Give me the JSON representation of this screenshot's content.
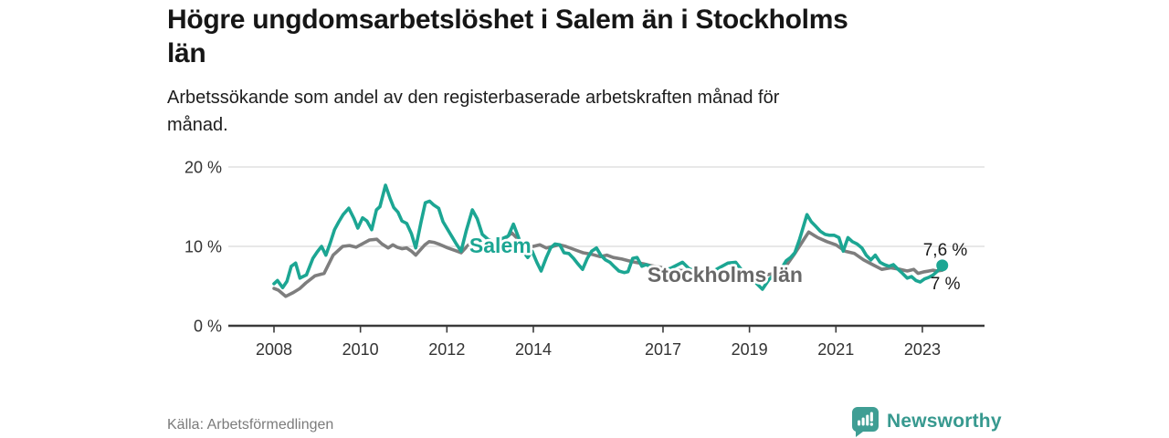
{
  "header": {
    "title": "Högre ungdomsarbetslöshet i Salem än i Stockholms\nlän",
    "subtitle": "Arbetssökande som andel av den registerbaserade arbetskraften månad för\nmånad."
  },
  "footer": {
    "source": "Källa: Arbetsförmedlingen",
    "brand": "Newsworthy",
    "brand_icon": "newsworthy-bar-chart-speech-bubble-icon",
    "brand_color": "#37998f"
  },
  "colors": {
    "salem_line": "#1ca693",
    "stockholm_line": "#7e7e7e",
    "stockholm_label": "#686868",
    "grid": "#d9d9d9",
    "axis": "#3a3a3a",
    "end_label_text": "#1a1a1a"
  },
  "chart_data": {
    "type": "line",
    "title": "Högre ungdomsarbetslöshet i Salem än i Stockholms län",
    "subtitle": "Arbetssökande som andel av den registerbaserade arbetskraften månad för månad.",
    "xlabel": "",
    "ylabel": "",
    "ylim": [
      0,
      20
    ],
    "xlim": [
      2007.6,
      2024.0
    ],
    "grid": "horizontal",
    "legend_position": "inline-labels",
    "y_axis": {
      "ticks": [
        {
          "value": 20,
          "label": "20 %"
        },
        {
          "value": 10,
          "label": "10 %"
        },
        {
          "value": 0,
          "label": "0 %"
        }
      ]
    },
    "x_axis": {
      "ticks": [
        {
          "value": 2008,
          "label": "2008"
        },
        {
          "value": 2010,
          "label": "2010"
        },
        {
          "value": 2012,
          "label": "2012"
        },
        {
          "value": 2014,
          "label": "2014"
        },
        {
          "value": 2017,
          "label": "2017"
        },
        {
          "value": 2019,
          "label": "2019"
        },
        {
          "value": 2021,
          "label": "2021"
        },
        {
          "value": 2023,
          "label": "2023"
        }
      ]
    },
    "series": [
      {
        "name": "Salem",
        "color": "#1ca693",
        "label_color": "#1ca693",
        "end_label": "7,6 %",
        "end_value": 7.6,
        "end_dot": true,
        "inline_label": {
          "text": "Salem",
          "year": 2012.52,
          "value": 9.2
        },
        "points": [
          [
            2008.0,
            5.3
          ],
          [
            2008.08,
            5.7
          ],
          [
            2008.2,
            4.8
          ],
          [
            2008.3,
            5.6
          ],
          [
            2008.4,
            7.5
          ],
          [
            2008.5,
            7.9
          ],
          [
            2008.6,
            6.0
          ],
          [
            2008.75,
            6.4
          ],
          [
            2008.9,
            8.5
          ],
          [
            2009.0,
            9.3
          ],
          [
            2009.1,
            10.0
          ],
          [
            2009.2,
            8.9
          ],
          [
            2009.3,
            10.4
          ],
          [
            2009.4,
            12.1
          ],
          [
            2009.5,
            13.1
          ],
          [
            2009.6,
            14.0
          ],
          [
            2009.73,
            14.8
          ],
          [
            2009.85,
            13.5
          ],
          [
            2009.94,
            12.3
          ],
          [
            2010.05,
            13.6
          ],
          [
            2010.15,
            13.2
          ],
          [
            2010.26,
            12.1
          ],
          [
            2010.37,
            14.6
          ],
          [
            2010.45,
            15.0
          ],
          [
            2010.58,
            17.7
          ],
          [
            2010.69,
            16.0
          ],
          [
            2010.77,
            14.9
          ],
          [
            2010.87,
            14.3
          ],
          [
            2010.96,
            13.2
          ],
          [
            2011.07,
            12.9
          ],
          [
            2011.18,
            11.6
          ],
          [
            2011.28,
            9.8
          ],
          [
            2011.4,
            13.0
          ],
          [
            2011.5,
            15.5
          ],
          [
            2011.6,
            15.7
          ],
          [
            2011.7,
            15.2
          ],
          [
            2011.81,
            14.8
          ],
          [
            2011.91,
            13.1
          ],
          [
            2012.02,
            12.1
          ],
          [
            2012.12,
            11.2
          ],
          [
            2012.22,
            10.3
          ],
          [
            2012.33,
            9.4
          ],
          [
            2012.45,
            12.0
          ],
          [
            2012.59,
            14.6
          ],
          [
            2012.7,
            13.5
          ],
          [
            2012.82,
            11.5
          ],
          [
            2012.95,
            10.9
          ],
          [
            2013.1,
            10.5
          ],
          [
            2013.25,
            10.9
          ],
          [
            2013.42,
            11.3
          ],
          [
            2013.54,
            12.8
          ],
          [
            2013.68,
            10.8
          ],
          [
            2013.8,
            9.1
          ],
          [
            2013.87,
            8.6
          ],
          [
            2013.97,
            9.4
          ],
          [
            2014.08,
            8.0
          ],
          [
            2014.18,
            6.9
          ],
          [
            2014.3,
            8.6
          ],
          [
            2014.4,
            9.8
          ],
          [
            2014.5,
            10.3
          ],
          [
            2014.61,
            10.2
          ],
          [
            2014.71,
            9.2
          ],
          [
            2014.82,
            9.1
          ],
          [
            2014.93,
            8.5
          ],
          [
            2015.03,
            7.8
          ],
          [
            2015.14,
            7.1
          ],
          [
            2015.25,
            8.5
          ],
          [
            2015.35,
            9.4
          ],
          [
            2015.46,
            9.8
          ],
          [
            2015.56,
            8.9
          ],
          [
            2015.67,
            8.3
          ],
          [
            2015.77,
            8.0
          ],
          [
            2015.88,
            7.4
          ],
          [
            2015.98,
            6.9
          ],
          [
            2016.1,
            6.7
          ],
          [
            2016.19,
            6.8
          ],
          [
            2016.3,
            8.5
          ],
          [
            2016.4,
            8.6
          ],
          [
            2016.51,
            7.5
          ],
          [
            2016.61,
            7.7
          ],
          [
            2016.8,
            7.2
          ],
          [
            2017.0,
            6.9
          ],
          [
            2017.2,
            7.3
          ],
          [
            2017.45,
            8.0
          ],
          [
            2017.6,
            7.2
          ],
          [
            2017.8,
            6.8
          ],
          [
            2018.0,
            6.6
          ],
          [
            2018.2,
            7.0
          ],
          [
            2018.5,
            7.9
          ],
          [
            2018.68,
            8.0
          ],
          [
            2018.85,
            6.8
          ],
          [
            2019.0,
            6.2
          ],
          [
            2019.15,
            5.4
          ],
          [
            2019.3,
            4.6
          ],
          [
            2019.45,
            5.8
          ],
          [
            2019.6,
            6.6
          ],
          [
            2019.75,
            7.3
          ],
          [
            2019.85,
            8.2
          ],
          [
            2019.95,
            8.6
          ],
          [
            2020.05,
            9.2
          ],
          [
            2020.16,
            10.9
          ],
          [
            2020.33,
            14.0
          ],
          [
            2020.43,
            13.1
          ],
          [
            2020.54,
            12.5
          ],
          [
            2020.64,
            11.9
          ],
          [
            2020.75,
            11.5
          ],
          [
            2020.85,
            11.4
          ],
          [
            2020.96,
            11.4
          ],
          [
            2021.07,
            11.1
          ],
          [
            2021.17,
            9.4
          ],
          [
            2021.28,
            11.1
          ],
          [
            2021.38,
            10.6
          ],
          [
            2021.49,
            10.3
          ],
          [
            2021.6,
            9.8
          ],
          [
            2021.7,
            8.9
          ],
          [
            2021.81,
            8.3
          ],
          [
            2021.91,
            8.9
          ],
          [
            2022.02,
            8.0
          ],
          [
            2022.12,
            7.7
          ],
          [
            2022.23,
            7.5
          ],
          [
            2022.33,
            7.7
          ],
          [
            2022.44,
            7.1
          ],
          [
            2022.54,
            6.6
          ],
          [
            2022.65,
            6.0
          ],
          [
            2022.75,
            6.2
          ],
          [
            2022.85,
            5.7
          ],
          [
            2022.95,
            5.5
          ],
          [
            2023.05,
            5.9
          ],
          [
            2023.15,
            6.1
          ],
          [
            2023.25,
            6.4
          ],
          [
            2023.35,
            6.9
          ],
          [
            2023.46,
            7.6
          ]
        ]
      },
      {
        "name": "Stockholms län",
        "color": "#7e7e7e",
        "label_color": "#686868",
        "end_label": "7 %",
        "end_value": 7.0,
        "end_dot": false,
        "inline_label": {
          "text": "Stockholms län",
          "year": 2016.64,
          "value": 5.5
        },
        "points": [
          [
            2008.0,
            4.7
          ],
          [
            2008.1,
            4.5
          ],
          [
            2008.27,
            3.7
          ],
          [
            2008.45,
            4.2
          ],
          [
            2008.6,
            4.7
          ],
          [
            2008.74,
            5.4
          ],
          [
            2008.95,
            6.3
          ],
          [
            2009.16,
            6.6
          ],
          [
            2009.37,
            8.9
          ],
          [
            2009.59,
            10.0
          ],
          [
            2009.75,
            10.1
          ],
          [
            2009.9,
            9.9
          ],
          [
            2010.0,
            10.2
          ],
          [
            2010.21,
            10.8
          ],
          [
            2010.38,
            10.9
          ],
          [
            2010.5,
            10.3
          ],
          [
            2010.64,
            9.8
          ],
          [
            2010.75,
            10.2
          ],
          [
            2010.85,
            9.9
          ],
          [
            2010.96,
            9.7
          ],
          [
            2011.07,
            9.8
          ],
          [
            2011.18,
            9.4
          ],
          [
            2011.28,
            8.9
          ],
          [
            2011.49,
            10.2
          ],
          [
            2011.59,
            10.6
          ],
          [
            2011.7,
            10.5
          ],
          [
            2011.81,
            10.3
          ],
          [
            2012.02,
            9.8
          ],
          [
            2012.23,
            9.4
          ],
          [
            2012.33,
            9.2
          ],
          [
            2012.5,
            10.2
          ],
          [
            2012.65,
            10.4
          ],
          [
            2012.85,
            9.7
          ],
          [
            2013.0,
            10.2
          ],
          [
            2013.15,
            10.6
          ],
          [
            2013.35,
            11.0
          ],
          [
            2013.5,
            11.7
          ],
          [
            2013.65,
            10.9
          ],
          [
            2013.85,
            10.0
          ],
          [
            2014.0,
            10.0
          ],
          [
            2014.15,
            10.2
          ],
          [
            2014.3,
            9.8
          ],
          [
            2014.45,
            10.0
          ],
          [
            2014.6,
            10.2
          ],
          [
            2014.75,
            10.0
          ],
          [
            2014.95,
            9.6
          ],
          [
            2015.15,
            9.2
          ],
          [
            2015.35,
            9.0
          ],
          [
            2015.55,
            8.7
          ],
          [
            2015.7,
            8.9
          ],
          [
            2015.85,
            8.6
          ],
          [
            2016.05,
            8.4
          ],
          [
            2016.2,
            8.2
          ],
          [
            2016.35,
            8.0
          ],
          [
            2016.55,
            7.8
          ],
          [
            2016.7,
            7.6
          ],
          [
            2017.0,
            7.3
          ],
          [
            2017.3,
            7.0
          ],
          [
            2017.6,
            6.9
          ],
          [
            2017.9,
            6.7
          ],
          [
            2018.2,
            6.6
          ],
          [
            2018.5,
            6.5
          ],
          [
            2018.8,
            6.4
          ],
          [
            2019.1,
            6.3
          ],
          [
            2019.4,
            6.4
          ],
          [
            2019.65,
            6.7
          ],
          [
            2019.84,
            7.5
          ],
          [
            2020.05,
            9.1
          ],
          [
            2020.25,
            10.8
          ],
          [
            2020.37,
            11.8
          ],
          [
            2020.58,
            11.1
          ],
          [
            2020.79,
            10.6
          ],
          [
            2021.0,
            10.2
          ],
          [
            2021.21,
            9.4
          ],
          [
            2021.43,
            9.1
          ],
          [
            2021.64,
            8.3
          ],
          [
            2021.85,
            7.7
          ],
          [
            2022.06,
            7.1
          ],
          [
            2022.27,
            7.3
          ],
          [
            2022.49,
            7.1
          ],
          [
            2022.65,
            6.9
          ],
          [
            2022.8,
            7.1
          ],
          [
            2022.9,
            6.6
          ],
          [
            2023.05,
            6.8
          ],
          [
            2023.15,
            6.9
          ],
          [
            2023.25,
            7.0
          ],
          [
            2023.35,
            6.9
          ],
          [
            2023.46,
            7.0
          ]
        ]
      }
    ]
  }
}
